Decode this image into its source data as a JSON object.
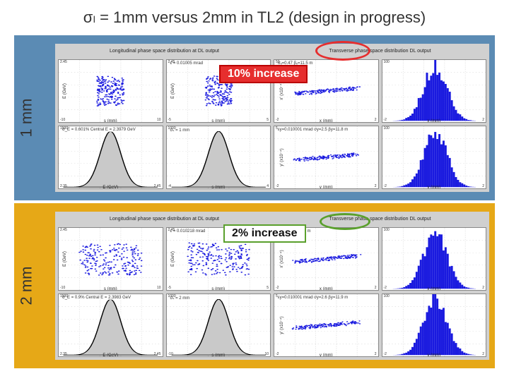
{
  "title": "σₗ = 1mm versus 2mm in TL2 (design in progress)",
  "panels": [
    {
      "side_label": "1 mm",
      "bg_color": "#5b8bb4",
      "fig_title_left": "Longitudinal phase space distribution at DL output",
      "fig_title_right": "Transverse phase space distribution DL output",
      "badge": {
        "text": "10% increase",
        "bg": "#e62e2e",
        "fg": "#ffffff",
        "border": "#b00000"
      },
      "highlight": {
        "color": "#e62e2e"
      },
      "subplots": [
        {
          "type": "scatter-cluster",
          "color": "#1a1adf",
          "xlabel": "s (mm)",
          "ylabel": "E (GeV)",
          "xticks": [
            "-10",
            "10"
          ],
          "yticks": [
            "2.35",
            "2.45"
          ]
        },
        {
          "type": "scatter-cluster",
          "color": "#1a1adf",
          "xlabel": "s (mm)",
          "ylabel": "E (GeV)",
          "xticks": [
            "-5",
            "5"
          ],
          "yticks": [
            "2.35",
            "2.45"
          ],
          "annot": "ε = 0.01005 mrad"
        },
        {
          "type": "scatter-tilt",
          "color": "#1a1adf",
          "xlabel": "x (mm)",
          "ylabel": "x' (x10⁻⁴)",
          "xticks": [
            "-2",
            "2"
          ],
          "yticks": [
            "-50",
            "50"
          ],
          "annot": "σₓ=0.47  βₓ=11.5 m"
        },
        {
          "type": "histogram",
          "color": "#1a1adf",
          "xlabel": "x (mm)",
          "ylabel": "",
          "xticks": [
            "-2",
            "2"
          ],
          "yticks": [
            "0",
            "100"
          ]
        },
        {
          "type": "gaussian",
          "color": "#000000",
          "xlabel": "E (GeV)",
          "ylabel": "",
          "xticks": [
            "2.35",
            "2.45"
          ],
          "yticks": [
            "0",
            "1500"
          ],
          "annot": "σ_E = 0.601%\\nCentral E = 2.3979 GeV"
        },
        {
          "type": "gaussian",
          "color": "#000000",
          "xlabel": "s (mm)",
          "ylabel": "",
          "xticks": [
            "-4",
            "4"
          ],
          "yticks": [
            "0",
            "1000"
          ],
          "annot": "σₛ = 1 mm"
        },
        {
          "type": "scatter-tilt",
          "color": "#1a1adf",
          "xlabel": "y (mm)",
          "ylabel": "y' (x10⁻⁴)",
          "xticks": [
            "-2",
            "2"
          ],
          "yticks": [
            "-5",
            "5"
          ],
          "annot": "εy=0.010001 mrad\\nσy=2.5  βy=11.8 m"
        },
        {
          "type": "histogram",
          "color": "#1a1adf",
          "xlabel": "y (mm)",
          "ylabel": "",
          "xticks": [
            "-2",
            "2"
          ],
          "yticks": [
            "0",
            "100"
          ]
        }
      ]
    },
    {
      "side_label": "2 mm",
      "bg_color": "#e6a817",
      "fig_title_left": "Longitudinal phase space distribution at DL output",
      "fig_title_right": "Transverse phase space distribution DL output",
      "badge": {
        "text": "2% increase",
        "bg": "#ffffff",
        "fg": "#111111",
        "border": "#5aa02c"
      },
      "highlight": {
        "color": "#5aa02c"
      },
      "subplots": [
        {
          "type": "scatter-wide",
          "color": "#1a1adf",
          "xlabel": "s (mm)",
          "ylabel": "E (GeV)",
          "xticks": [
            "-10",
            "10"
          ],
          "yticks": [
            "2.35",
            "2.45"
          ]
        },
        {
          "type": "scatter-wide",
          "color": "#1a1adf",
          "xlabel": "s (mm)",
          "ylabel": "E (GeV)",
          "xticks": [
            "-5",
            "5"
          ],
          "yticks": [
            "2.35",
            "2.45"
          ],
          "annot": "ε = 0.010218 mrad"
        },
        {
          "type": "scatter-tilt",
          "color": "#1a1adf",
          "xlabel": "x (mm)",
          "ylabel": "x' (x10⁻⁴)",
          "xticks": [
            "-2",
            "2"
          ],
          "yticks": [
            "-50",
            "50"
          ],
          "annot": "σₓ=0.4  βₓ=10.9 m"
        },
        {
          "type": "histogram",
          "color": "#1a1adf",
          "xlabel": "x (mm)",
          "ylabel": "",
          "xticks": [
            "-2",
            "2"
          ],
          "yticks": [
            "0",
            "100"
          ]
        },
        {
          "type": "gaussian",
          "color": "#000000",
          "xlabel": "E (GeV)",
          "ylabel": "",
          "xticks": [
            "2.35",
            "2.45"
          ],
          "yticks": [
            "0",
            "1500"
          ],
          "annot": "σ_E = 0.9%\\nCentral E = 2.3983 GeV"
        },
        {
          "type": "gaussian",
          "color": "#000000",
          "xlabel": "s (mm)",
          "ylabel": "",
          "xticks": [
            "-10",
            "10"
          ],
          "yticks": [
            "0",
            "1000"
          ],
          "annot": "σₛ = 2 mm"
        },
        {
          "type": "scatter-tilt",
          "color": "#1a1adf",
          "xlabel": "y (mm)",
          "ylabel": "y' (x10⁻⁴)",
          "xticks": [
            "-2",
            "2"
          ],
          "yticks": [
            "-5",
            "5"
          ],
          "annot": "εy=0.010001 mrad\\nσy=2.6  βy=11.9 m"
        },
        {
          "type": "histogram",
          "color": "#1a1adf",
          "xlabel": "y (mm)",
          "ylabel": "",
          "xticks": [
            "-2",
            "2"
          ],
          "yticks": [
            "0",
            "100"
          ]
        }
      ]
    }
  ],
  "plot_bg": "#ffffff",
  "plot_grid": "#d0d0d0",
  "fontsize_title": 22,
  "fontsize_label": 22,
  "fontsize_badge": 16
}
